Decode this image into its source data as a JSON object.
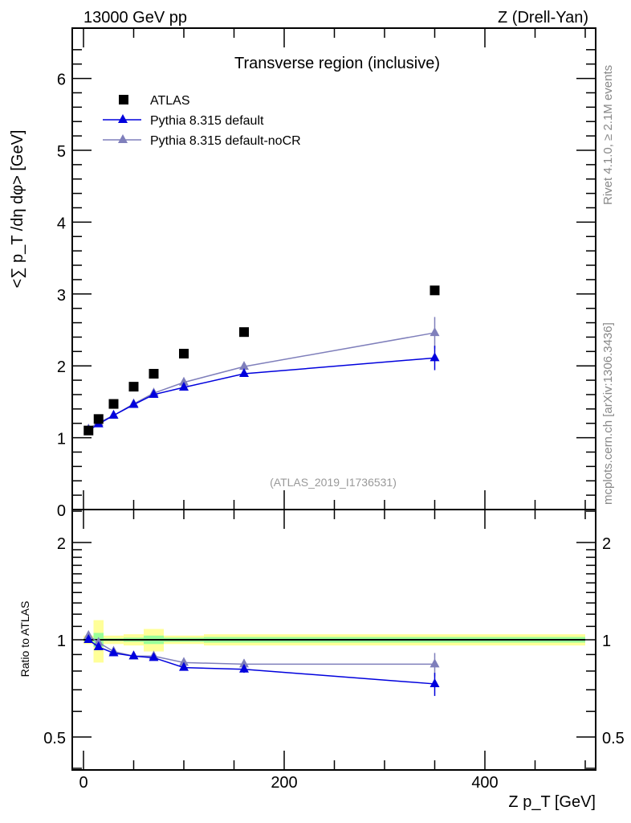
{
  "header": {
    "left": "13000 GeV pp",
    "right": "Z (Drell-Yan)"
  },
  "side_text": {
    "rivet": "Rivet 4.1.0, ≥ 2.1M events",
    "mcplots": "mcplots.cern.ch [arXiv:1306.3436]"
  },
  "chart_data": [
    {
      "type": "line",
      "title": "Transverse region (inclusive)",
      "annotation": "(ATLAS_2019_I1736531)",
      "ylabel": "<∑ p_T /dη dφ> [GeV]",
      "xlim": [
        -11,
        510
      ],
      "ylim": [
        0,
        6.7
      ],
      "yticks": [
        "0",
        "1",
        "2",
        "3",
        "4",
        "5",
        "6"
      ],
      "x": [
        5,
        15,
        30,
        50,
        70,
        100,
        160,
        350
      ],
      "series": [
        {
          "name": "ATLAS",
          "color": "#000000",
          "marker": "square",
          "values": [
            1.1,
            1.26,
            1.47,
            1.71,
            1.89,
            2.17,
            2.47,
            3.05
          ]
        },
        {
          "name": "Pythia 8.315 default",
          "color": "#0000dd",
          "marker": "triangle",
          "values": [
            1.1,
            1.19,
            1.31,
            1.46,
            1.6,
            1.7,
            1.89,
            2.11
          ],
          "errors": [
            0.01,
            0.01,
            0.01,
            0.01,
            0.01,
            0.01,
            0.02,
            0.17
          ]
        },
        {
          "name": "Pythia 8.315 default-noCR",
          "color": "#7f7fbb",
          "marker": "triangle",
          "values": [
            1.12,
            1.21,
            1.31,
            1.47,
            1.62,
            1.77,
            1.99,
            2.46
          ],
          "errors": [
            0.01,
            0.01,
            0.01,
            0.01,
            0.01,
            0.02,
            0.06,
            0.22
          ]
        }
      ],
      "legend": "top-left"
    },
    {
      "type": "line",
      "ylabel": "Ratio to ATLAS",
      "xlabel": "Z p_T [GeV]",
      "yscale": "log",
      "ylim": [
        0.395,
        2.53
      ],
      "yticks": [
        "0.5",
        "1",
        "2"
      ],
      "xticks": [
        "0",
        "200",
        "400"
      ],
      "bin_edges": [
        0,
        10,
        20,
        40,
        60,
        80,
        120,
        200,
        500
      ],
      "band_yellow": [
        0.03,
        0.15,
        0.03,
        0.04,
        0.08,
        0.03,
        0.04,
        0.04
      ],
      "band_green": [
        0.01,
        0.05,
        0.01,
        0.015,
        0.03,
        0.015,
        0.02,
        0.02
      ],
      "x": [
        5,
        15,
        30,
        50,
        70,
        100,
        160,
        350
      ],
      "series": [
        {
          "name": "Pythia 8.315 default",
          "color": "#0000dd",
          "values": [
            1.0,
            0.95,
            0.91,
            0.89,
            0.88,
            0.82,
            0.81,
            0.73
          ],
          "errors": [
            0.01,
            0.01,
            0.01,
            0.01,
            0.01,
            0.01,
            0.02,
            0.06
          ]
        },
        {
          "name": "Pythia 8.315 default-noCR",
          "color": "#7f7fbb",
          "values": [
            1.03,
            0.98,
            0.92,
            0.89,
            0.89,
            0.85,
            0.84,
            0.84
          ],
          "errors": [
            0.01,
            0.01,
            0.01,
            0.01,
            0.01,
            0.01,
            0.03,
            0.07
          ]
        }
      ]
    }
  ]
}
